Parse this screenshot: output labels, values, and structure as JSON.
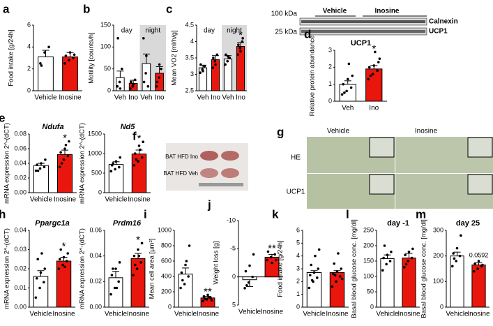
{
  "chart_data": [
    {
      "type": "bar",
      "panel": "a",
      "ylabel": "Food intake [g/24h]",
      "categories": [
        "Vehicle",
        "Inosine"
      ],
      "colors": [
        "#ffffff",
        "#e8160c"
      ],
      "values": [
        3.1,
        3.1
      ],
      "errors": [
        0.6,
        0.4
      ],
      "points": [
        [
          2.5,
          3.5,
          4.0,
          2.3
        ],
        [
          2.5,
          2.8,
          3.0,
          3.2,
          3.5,
          3.3
        ]
      ],
      "ylim": [
        0,
        6
      ],
      "yticks": [
        0,
        2,
        4,
        6
      ]
    },
    {
      "type": "bar",
      "panel": "b",
      "ylabel": "Motility [counts/h]",
      "group_labels": [
        "day",
        "night"
      ],
      "categories": [
        "Veh",
        "Ino",
        "Veh",
        "Ino"
      ],
      "colors": [
        "#ffffff",
        "#e8160c",
        "#ffffff",
        "#e8160c"
      ],
      "values": [
        30,
        17,
        62,
        40
      ],
      "errors": [
        15,
        7,
        22,
        15
      ],
      "points": [
        [
          10,
          20,
          50,
          120,
          5
        ],
        [
          5,
          10,
          25,
          20,
          15
        ],
        [
          120,
          40,
          10,
          20,
          80
        ],
        [
          10,
          30,
          50,
          20,
          60
        ]
      ],
      "ylim": [
        0,
        150
      ],
      "yticks": [
        0,
        50,
        100,
        150
      ]
    },
    {
      "type": "bar",
      "panel": "c",
      "ylabel": "Mean VO2 [ml/h/g]",
      "group_labels": [
        "day",
        "night"
      ],
      "categories": [
        "Veh",
        "Ino",
        "Veh",
        "Ino"
      ],
      "colors": [
        "#ffffff",
        "#e8160c",
        "#ffffff",
        "#e8160c"
      ],
      "values": [
        3.2,
        3.45,
        3.47,
        3.85
      ],
      "errors": [
        0.08,
        0.12,
        0.1,
        0.12
      ],
      "points": [
        [
          3.05,
          3.15,
          3.25,
          3.3,
          3.1
        ],
        [
          3.2,
          3.4,
          3.6,
          3.5,
          3.3
        ],
        [
          3.3,
          3.4,
          3.5,
          3.6,
          3.55
        ],
        [
          3.6,
          3.8,
          4.0,
          3.9,
          3.7,
          4.1
        ]
      ],
      "ylim": [
        2.5,
        4.5
      ],
      "yticks": [
        2.5,
        3.0,
        3.5,
        4.0,
        4.5
      ],
      "annotations": [
        {
          "index": 3,
          "text": "*"
        }
      ]
    },
    {
      "type": "bar",
      "panel": "d",
      "title": "UCP1",
      "ylabel": "Relative protein abundance",
      "categories": [
        "Veh",
        "Ino"
      ],
      "colors": [
        "#ffffff",
        "#e8160c"
      ],
      "values": [
        1.0,
        1.9
      ],
      "errors": [
        0.2,
        0.2
      ],
      "points": [
        [
          0.4,
          0.6,
          0.8,
          1.0,
          1.3,
          1.5,
          0.5,
          2.2
        ],
        [
          1.3,
          1.6,
          1.8,
          2.0,
          2.1,
          2.3,
          1.5,
          2.9,
          2.5
        ]
      ],
      "ylim": [
        0,
        3
      ],
      "yticks": [
        0,
        1,
        2,
        3
      ],
      "annotations": [
        {
          "index": 1,
          "text": "*"
        }
      ]
    },
    {
      "type": "bar",
      "panel": "e",
      "title": "Ndufa",
      "ylabel": "mRNA expression 2^-(dCT)",
      "categories": [
        "Vehicle",
        "Inosine"
      ],
      "colors": [
        "#ffffff",
        "#e8160c"
      ],
      "values": [
        0.037,
        0.052
      ],
      "errors": [
        0.003,
        0.006
      ],
      "points": [
        [
          0.03,
          0.033,
          0.035,
          0.038,
          0.04,
          0.045,
          0.03
        ],
        [
          0.035,
          0.045,
          0.05,
          0.055,
          0.06,
          0.07,
          0.04,
          0.065
        ]
      ],
      "ylim": [
        0,
        0.08
      ],
      "yticks": [
        {
          "value": 0,
          "label": "0.00"
        },
        0.02,
        0.04,
        0.06,
        0.08
      ],
      "annotations": [
        {
          "index": 1,
          "text": "*"
        }
      ]
    },
    {
      "type": "bar",
      "title": "Nd5",
      "ylabel": "mRNA expression 2^-(dCT)",
      "categories": [
        "Vehicle",
        "Inosine"
      ],
      "colors": [
        "#ffffff",
        "#e8160c"
      ],
      "values": [
        720,
        990
      ],
      "errors": [
        70,
        100
      ],
      "points": [
        [
          550,
          600,
          650,
          700,
          800,
          900,
          750
        ],
        [
          700,
          800,
          900,
          1000,
          1200,
          1300,
          850,
          1100
        ]
      ],
      "ylim": [
        0,
        1500
      ],
      "yticks": [
        0,
        500,
        1000,
        1500
      ],
      "annotations": [
        {
          "index": 1,
          "text": "*"
        }
      ]
    },
    {
      "type": "bar",
      "panel": "h",
      "title": "Ppargc1a",
      "ylabel": "mRNA expression 2^-(dCT)",
      "categories": [
        "Vehicle",
        "Inosine"
      ],
      "colors": [
        "#ffffff",
        "#e8160c"
      ],
      "values": [
        0.016,
        0.024
      ],
      "errors": [
        0.003,
        0.002
      ],
      "points": [
        [
          0.005,
          0.01,
          0.013,
          0.015,
          0.018,
          0.02,
          0.025,
          0.028
        ],
        [
          0.02,
          0.022,
          0.024,
          0.025,
          0.026,
          0.028,
          0.03,
          0.021
        ]
      ],
      "ylim": [
        0,
        0.04
      ],
      "yticks": [
        {
          "value": 0,
          "label": "0.00"
        },
        0.01,
        0.02,
        0.03,
        0.04
      ],
      "annotations": [
        {
          "index": 1,
          "text": "*"
        }
      ]
    },
    {
      "type": "bar",
      "title": "Prdm16",
      "ylabel": "mRNA expression 2^-(dCT)",
      "categories": [
        "Vehicle",
        "Inosine"
      ],
      "colors": [
        "#ffffff",
        "#e8160c"
      ],
      "values": [
        0.023,
        0.038
      ],
      "errors": [
        0.005,
        0.004
      ],
      "points": [
        [
          0.01,
          0.015,
          0.02,
          0.025,
          0.03,
          0.035,
          0.03,
          0.015
        ],
        [
          0.025,
          0.03,
          0.035,
          0.04,
          0.045,
          0.05,
          0.033,
          0.04
        ]
      ],
      "ylim": [
        0,
        0.06
      ],
      "yticks": [
        {
          "value": 0,
          "label": "0.00"
        },
        0.02,
        0.04,
        0.06
      ],
      "annotations": [
        {
          "index": 1,
          "text": "*"
        }
      ]
    },
    {
      "type": "bar",
      "panel": "i",
      "ylabel": "Mean cell area [µm²]",
      "categories": [
        "Vehicle",
        "Inosine"
      ],
      "colors": [
        "#ffffff",
        "#e8160c"
      ],
      "values": [
        430,
        120
      ],
      "errors": [
        80,
        20
      ],
      "points": [
        [
          250,
          300,
          400,
          450,
          550,
          800,
          350,
          600
        ],
        [
          80,
          100,
          120,
          140,
          160,
          90,
          110,
          130
        ]
      ],
      "ylim": [
        0,
        1000
      ],
      "yticks": [
        0,
        200,
        400,
        600,
        800,
        1000
      ],
      "annotations": [
        {
          "index": 1,
          "text": "**"
        }
      ]
    },
    {
      "type": "bar",
      "panel": "j",
      "ylabel": "Weight loss [g]",
      "categories": [
        "Vehicle",
        "Inosine"
      ],
      "colors": [
        "#ffffff",
        "#e8160c"
      ],
      "values": [
        0.5,
        -3.5
      ],
      "errors": [
        1.2,
        0.5
      ],
      "points": [
        [
          2,
          1,
          0,
          -1,
          -2,
          -4,
          1.5
        ],
        [
          -3,
          -3.5,
          -4,
          -4.5,
          -2.5,
          -3
        ]
      ],
      "ylim": [
        5,
        -10
      ],
      "yticks": [
        -10,
        -5,
        0,
        5
      ],
      "annotations": [
        {
          "index": 1,
          "text": "**"
        }
      ]
    },
    {
      "type": "bar",
      "panel": "k",
      "ylabel": "Food intake [g/24h]",
      "categories": [
        "Vehicle",
        "Inosine"
      ],
      "colors": [
        "#ffffff",
        "#e8160c"
      ],
      "values": [
        2.7,
        2.7
      ],
      "errors": [
        0.15,
        0.15
      ],
      "points": [
        [
          1.5,
          2,
          2.3,
          2.5,
          2.7,
          3,
          3.3,
          4,
          4.5,
          2.1
        ],
        [
          1.6,
          2,
          2.4,
          2.6,
          2.8,
          3,
          3.4,
          4.2,
          2.2,
          2.5
        ]
      ],
      "ylim": [
        0,
        6
      ],
      "yticks": [
        0,
        1,
        2,
        3,
        4,
        5,
        6
      ]
    },
    {
      "type": "bar",
      "panel": "l",
      "title": "day -1",
      "ylabel": "Basal blood glucose conc. [mg/dl]",
      "categories": [
        "Vehicle",
        "Inosine"
      ],
      "colors": [
        "#ffffff",
        "#e8160c"
      ],
      "values": [
        158,
        160
      ],
      "errors": [
        12,
        15
      ],
      "points": [
        [
          120,
          140,
          150,
          160,
          170,
          180,
          200
        ],
        [
          130,
          150,
          160,
          170,
          180,
          190,
          140
        ]
      ],
      "ylim": [
        0,
        250
      ],
      "yticks": [
        0,
        50,
        100,
        150,
        200,
        250
      ]
    },
    {
      "type": "bar",
      "panel": "m",
      "title": "day 25",
      "ylabel": "Basal blood glucose conc. [mg/dl]",
      "categories": [
        "Vehicle",
        "Inosine"
      ],
      "colors": [
        "#ffffff",
        "#e8160c"
      ],
      "values": [
        200,
        165
      ],
      "errors": [
        15,
        8
      ],
      "points": [
        [
          160,
          180,
          200,
          210,
          230,
          280,
          190
        ],
        [
          140,
          150,
          160,
          170,
          180,
          165
        ]
      ],
      "ylim": [
        0,
        300
      ],
      "yticks": [
        0,
        100,
        200,
        300
      ],
      "annotations": [
        {
          "index": 1,
          "text": "0.0592"
        }
      ]
    }
  ],
  "blot": {
    "markers": [
      "100 kDa",
      "25 kDa"
    ],
    "groups": [
      "Vehicle",
      "Inosine"
    ],
    "proteins": [
      "Calnexin",
      "UCP1"
    ]
  },
  "photo": {
    "panel": "f",
    "labels": [
      "BAT HFD Ino",
      "BAT HFD Veh"
    ]
  },
  "histology": {
    "panel": "g",
    "columns": [
      "Vehicle",
      "Inosine"
    ],
    "rows": [
      "HE",
      "UCP1"
    ]
  }
}
